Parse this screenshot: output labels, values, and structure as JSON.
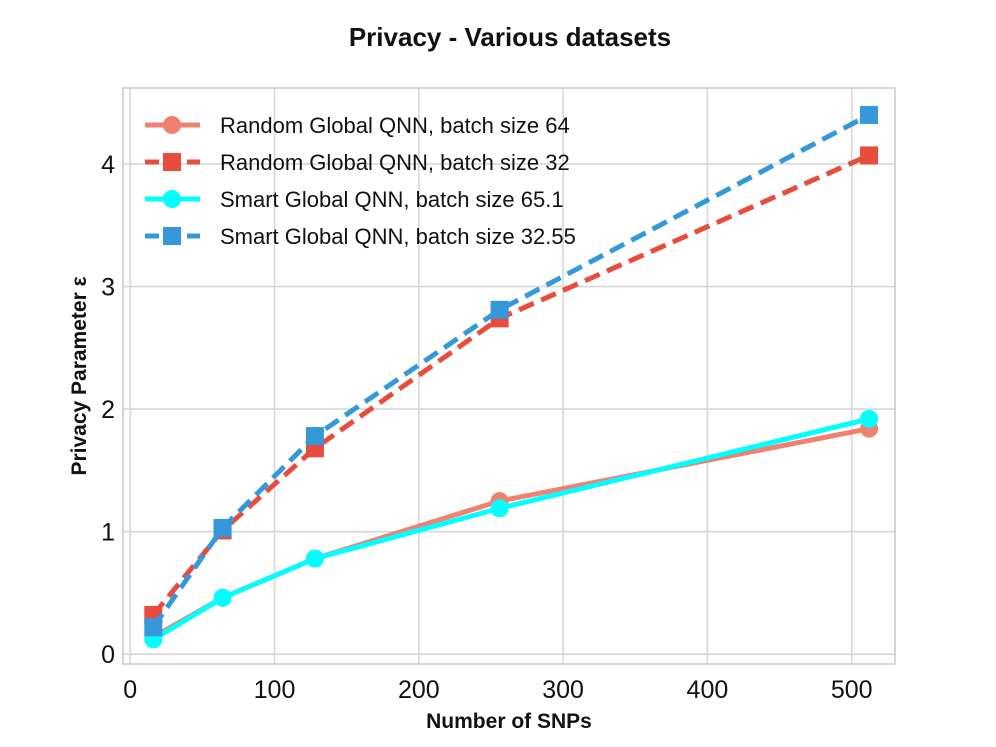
{
  "chart_data": {
    "type": "line",
    "title": "Privacy - Various datasets",
    "xlabel": "Number of SNPs",
    "ylabel": "Privacy Parameter ε",
    "xlim": [
      -5,
      530
    ],
    "ylim": [
      -0.08,
      4.62
    ],
    "xticks": [
      0,
      100,
      200,
      300,
      400,
      500
    ],
    "yticks": [
      0,
      1,
      2,
      3,
      4
    ],
    "grid": true,
    "legend_position": "top-left",
    "series": [
      {
        "name": "Random Global QNN, batch size 64",
        "x": [
          16,
          64,
          128,
          256,
          512
        ],
        "y": [
          0.14,
          0.46,
          0.78,
          1.25,
          1.84
        ],
        "color": "#f08070",
        "line_style": "solid",
        "marker": "circle"
      },
      {
        "name": "Random Global QNN, batch size 32",
        "x": [
          16,
          64,
          128,
          256,
          512
        ],
        "y": [
          0.32,
          1.01,
          1.68,
          2.74,
          4.07
        ],
        "color": "#e74c3c",
        "line_style": "dashed",
        "marker": "square"
      },
      {
        "name": "Smart Global QNN, batch size 65.1",
        "x": [
          16,
          64,
          128,
          256,
          512
        ],
        "y": [
          0.12,
          0.46,
          0.78,
          1.19,
          1.92
        ],
        "color": "#00ffff",
        "line_style": "solid",
        "marker": "circle"
      },
      {
        "name": "Smart Global QNN, batch size 32.55",
        "x": [
          16,
          64,
          128,
          256,
          512
        ],
        "y": [
          0.22,
          1.03,
          1.78,
          2.81,
          4.4
        ],
        "color": "#3498db",
        "line_style": "dashed",
        "marker": "square"
      }
    ]
  }
}
